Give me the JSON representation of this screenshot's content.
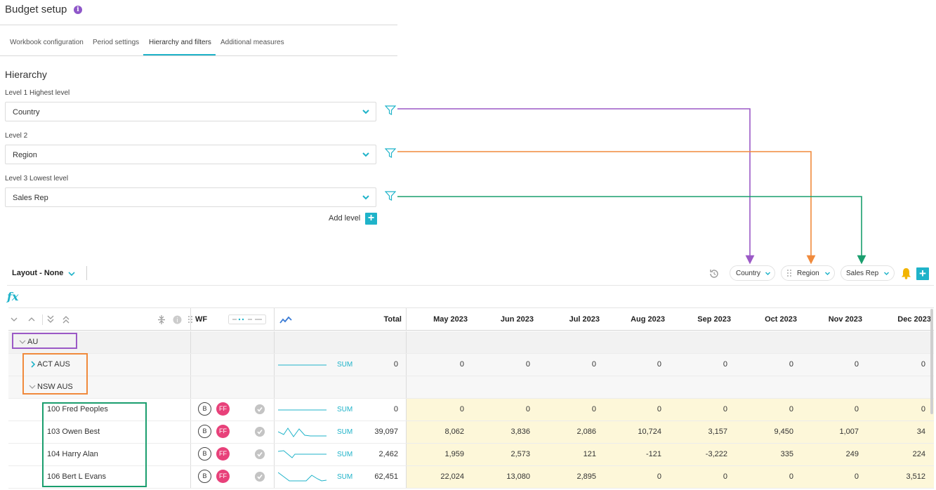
{
  "app": {
    "title": "Budget setup",
    "info_icon": "i"
  },
  "tabs": [
    {
      "label": "Workbook configuration",
      "active": false
    },
    {
      "label": "Period settings",
      "active": false
    },
    {
      "label": "Hierarchy and filters",
      "active": true
    },
    {
      "label": "Additional measures",
      "active": false
    }
  ],
  "hierarchy": {
    "title": "Hierarchy",
    "levels": [
      {
        "label": "Level 1 Highest level",
        "value": "Country",
        "connector_color": "#9b59c6"
      },
      {
        "label": "Level 2",
        "value": "Region",
        "connector_color": "#f08a3c"
      },
      {
        "label": "Level 3 Lowest level",
        "value": "Sales Rep",
        "connector_color": "#1a9e6e"
      }
    ],
    "add_level_label": "Add level",
    "add_level_icon": "+"
  },
  "toolbar": {
    "layout_label": "Layout - None",
    "filters": [
      "Country",
      "Region",
      "Sales Rep"
    ],
    "add_icon": "+",
    "fx_label": "fx"
  },
  "grid": {
    "headers": {
      "wf": "WF",
      "total": "Total",
      "months": [
        "May 2023",
        "Jun 2023",
        "Jul 2023",
        "Aug 2023",
        "Sep 2023",
        "Oct 2023",
        "Nov 2023",
        "Dec 2023"
      ]
    },
    "rows": [
      {
        "label": "AU",
        "level": 1,
        "expanded": true,
        "agg": "",
        "total": "",
        "values": [
          "",
          "",
          "",
          "",
          "",
          "",
          "",
          ""
        ]
      },
      {
        "label": "ACT  AUS",
        "level": 2,
        "expanded": false,
        "agg": "SUM",
        "total": "0",
        "values": [
          "0",
          "0",
          "0",
          "0",
          "0",
          "0",
          "0",
          "0"
        ]
      },
      {
        "label": "NSW  AUS",
        "level": 2,
        "expanded": true,
        "agg": "",
        "total": "",
        "values": [
          "",
          "",
          "",
          "",
          "",
          "",
          "",
          ""
        ]
      },
      {
        "label": "100  Fred Peoples",
        "level": 3,
        "b": "B",
        "ff": "FF",
        "agg": "SUM",
        "total": "0",
        "values": [
          "0",
          "0",
          "0",
          "0",
          "0",
          "0",
          "0",
          "0"
        ]
      },
      {
        "label": "103  Owen Best",
        "level": 3,
        "b": "B",
        "ff": "FF",
        "agg": "SUM",
        "total": "39,097",
        "values": [
          "8,062",
          "3,836",
          "2,086",
          "10,724",
          "3,157",
          "9,450",
          "1,007",
          "34"
        ]
      },
      {
        "label": "104  Harry Alan",
        "level": 3,
        "b": "B",
        "ff": "FF",
        "agg": "SUM",
        "total": "2,462",
        "values": [
          "1,959",
          "2,573",
          "121",
          "-121",
          "-3,222",
          "335",
          "249",
          "224"
        ]
      },
      {
        "label": "106  Bert L Evans",
        "level": 3,
        "b": "B",
        "ff": "FF",
        "agg": "SUM",
        "total": "62,451",
        "values": [
          "22,024",
          "13,080",
          "2,895",
          "0",
          "0",
          "0",
          "0",
          "3,512"
        ]
      }
    ]
  },
  "colors": {
    "accent": "#1fb3c9",
    "purple": "#9b59c6",
    "orange": "#f08a3c",
    "green": "#1a9e6e",
    "ff_badge": "#e8417a",
    "input_area": "#fdf7d9"
  }
}
